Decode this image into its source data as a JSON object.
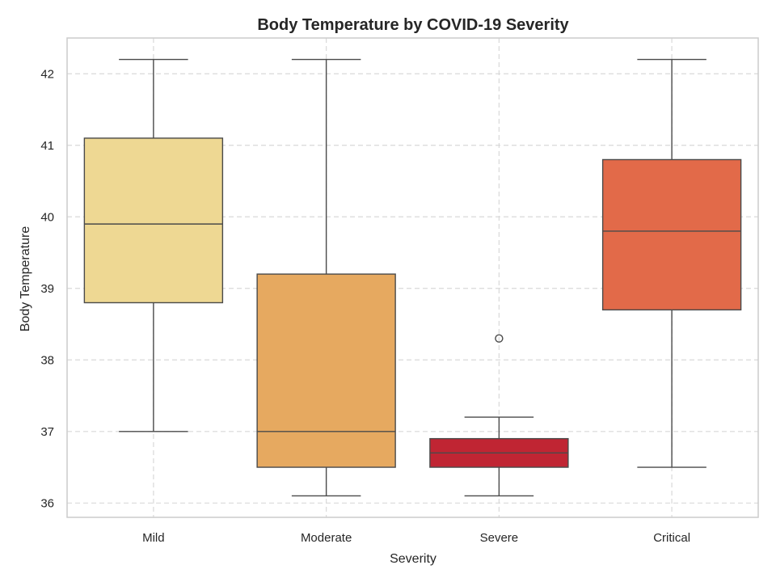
{
  "chart_data": {
    "type": "box",
    "title": "Body Temperature by COVID-19 Severity",
    "xlabel": "Severity",
    "ylabel": "Body Temperature",
    "ylim": [
      35.8,
      42.5
    ],
    "yticks": [
      36,
      37,
      38,
      39,
      40,
      41,
      42
    ],
    "grid": true,
    "categories": [
      "Mild",
      "Moderate",
      "Severe",
      "Critical"
    ],
    "boxes": [
      {
        "category": "Mild",
        "whisker_low": 37.0,
        "q1": 38.8,
        "median": 39.9,
        "q3": 41.1,
        "whisker_high": 42.2,
        "outliers": [],
        "color": "#EED893"
      },
      {
        "category": "Moderate",
        "whisker_low": 36.1,
        "q1": 36.5,
        "median": 37.0,
        "q3": 39.2,
        "whisker_high": 42.2,
        "outliers": [],
        "color": "#E6A960"
      },
      {
        "category": "Severe",
        "whisker_low": 36.1,
        "q1": 36.5,
        "median": 36.7,
        "q3": 36.9,
        "whisker_high": 37.2,
        "outliers": [
          38.3
        ],
        "color": "#C02533"
      },
      {
        "category": "Critical",
        "whisker_low": 36.5,
        "q1": 38.7,
        "median": 39.8,
        "q3": 40.8,
        "whisker_high": 42.2,
        "outliers": [],
        "color": "#E26A49"
      }
    ]
  },
  "colors": {
    "line": "#4a4a4a",
    "grid": "#d9d9d9",
    "frame": "#cccccc"
  }
}
